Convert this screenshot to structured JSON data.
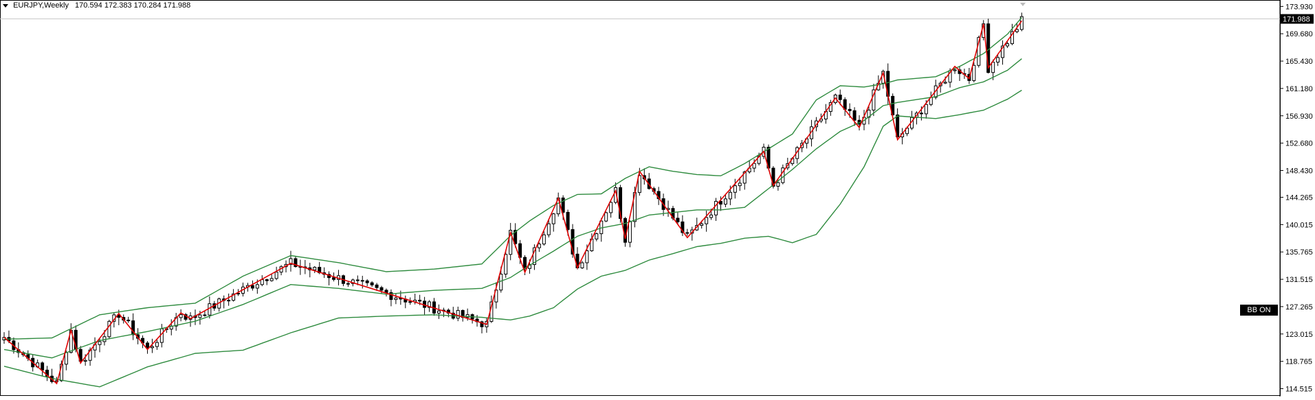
{
  "header": {
    "symbol": "EURJPY,Weekly",
    "ohlc": "170.594 172.383 170.284 171.988"
  },
  "badge": {
    "label": "BB ON"
  },
  "colors": {
    "background": "#ffffff",
    "candle": "#000000",
    "bollinger": "#2e8b3e",
    "zigzag": "#e00000",
    "price_tag_bg": "#000000",
    "price_tag_text": "#ffffff"
  },
  "chart_data": {
    "type": "candlestick",
    "ylim": [
      113.5,
      174.5
    ],
    "yticks": [
      "173.930",
      "169.680",
      "165.430",
      "161.180",
      "156.930",
      "152.680",
      "148.430",
      "144.265",
      "140.015",
      "135.765",
      "131.515",
      "127.265",
      "123.015",
      "118.765",
      "114.515"
    ],
    "last_price_label": "171.988",
    "zigzag": [
      [
        0,
        122.5
      ],
      [
        11,
        115.3
      ],
      [
        14,
        123.6
      ],
      [
        16,
        118.5
      ],
      [
        24,
        126.2
      ],
      [
        30,
        120.6
      ],
      [
        37,
        126.3
      ],
      [
        39,
        125.4
      ],
      [
        60,
        134.0
      ],
      [
        101,
        124.5
      ],
      [
        106,
        138.8
      ],
      [
        109,
        132.6
      ],
      [
        116,
        144.1
      ],
      [
        120,
        133.3
      ],
      [
        128,
        145.3
      ],
      [
        130,
        137.8
      ],
      [
        133,
        148.3
      ],
      [
        143,
        138.0
      ],
      [
        159,
        151.4
      ],
      [
        161,
        146.1
      ],
      [
        174,
        159.7
      ],
      [
        179,
        155.1
      ],
      [
        184,
        163.6
      ],
      [
        187,
        153.2
      ],
      [
        199,
        164.6
      ],
      [
        202,
        162.7
      ],
      [
        205,
        171.2
      ],
      [
        206,
        164.4
      ],
      [
        213,
        171.7
      ]
    ],
    "bollinger_upper": [
      [
        0,
        122.2
      ],
      [
        10,
        122.4
      ],
      [
        20,
        126.0
      ],
      [
        30,
        127.1
      ],
      [
        40,
        127.8
      ],
      [
        50,
        132.0
      ],
      [
        60,
        135.2
      ],
      [
        70,
        134.1
      ],
      [
        80,
        132.7
      ],
      [
        90,
        133.1
      ],
      [
        100,
        133.9
      ],
      [
        106,
        138.3
      ],
      [
        110,
        140.6
      ],
      [
        115,
        143.0
      ],
      [
        120,
        144.7
      ],
      [
        125,
        144.8
      ],
      [
        130,
        147.2
      ],
      [
        135,
        149.0
      ],
      [
        140,
        148.3
      ],
      [
        145,
        147.8
      ],
      [
        150,
        147.6
      ],
      [
        155,
        149.5
      ],
      [
        160,
        151.8
      ],
      [
        165,
        154.1
      ],
      [
        170,
        159.4
      ],
      [
        175,
        161.6
      ],
      [
        180,
        161.4
      ],
      [
        184,
        161.9
      ],
      [
        187,
        162.5
      ],
      [
        195,
        163.0
      ],
      [
        200,
        164.6
      ],
      [
        205,
        166.6
      ],
      [
        210,
        169.6
      ],
      [
        213,
        172.2
      ]
    ],
    "bollinger_middle": [
      [
        0,
        120.6
      ],
      [
        10,
        119.3
      ],
      [
        20,
        122.0
      ],
      [
        30,
        123.4
      ],
      [
        40,
        125.0
      ],
      [
        50,
        127.6
      ],
      [
        60,
        130.7
      ],
      [
        70,
        130.1
      ],
      [
        80,
        129.2
      ],
      [
        90,
        129.8
      ],
      [
        100,
        130.1
      ],
      [
        106,
        131.8
      ],
      [
        110,
        133.7
      ],
      [
        115,
        135.9
      ],
      [
        120,
        138.2
      ],
      [
        125,
        139.5
      ],
      [
        130,
        140.2
      ],
      [
        135,
        141.5
      ],
      [
        140,
        141.9
      ],
      [
        145,
        142.3
      ],
      [
        150,
        142.3
      ],
      [
        155,
        142.7
      ],
      [
        160,
        145.6
      ],
      [
        165,
        148.6
      ],
      [
        170,
        151.8
      ],
      [
        175,
        154.5
      ],
      [
        180,
        156.2
      ],
      [
        184,
        158.5
      ],
      [
        187,
        159.0
      ],
      [
        195,
        159.9
      ],
      [
        200,
        161.3
      ],
      [
        205,
        162.2
      ],
      [
        210,
        164.0
      ],
      [
        213,
        165.8
      ]
    ],
    "bollinger_lower": [
      [
        0,
        118.0
      ],
      [
        10,
        116.1
      ],
      [
        20,
        114.8
      ],
      [
        30,
        117.9
      ],
      [
        40,
        120.0
      ],
      [
        50,
        120.5
      ],
      [
        60,
        123.2
      ],
      [
        70,
        125.5
      ],
      [
        80,
        125.8
      ],
      [
        90,
        126.0
      ],
      [
        100,
        125.6
      ],
      [
        106,
        125.2
      ],
      [
        110,
        125.8
      ],
      [
        115,
        127.1
      ],
      [
        120,
        130.0
      ],
      [
        125,
        132.0
      ],
      [
        130,
        132.9
      ],
      [
        135,
        134.5
      ],
      [
        140,
        135.5
      ],
      [
        145,
        136.6
      ],
      [
        150,
        137.1
      ],
      [
        155,
        137.9
      ],
      [
        160,
        138.2
      ],
      [
        165,
        137.2
      ],
      [
        170,
        138.5
      ],
      [
        175,
        143.2
      ],
      [
        180,
        149.0
      ],
      [
        184,
        155.3
      ],
      [
        187,
        156.9
      ],
      [
        195,
        156.5
      ],
      [
        200,
        157.1
      ],
      [
        205,
        157.8
      ],
      [
        210,
        159.5
      ],
      [
        213,
        160.9
      ]
    ]
  }
}
